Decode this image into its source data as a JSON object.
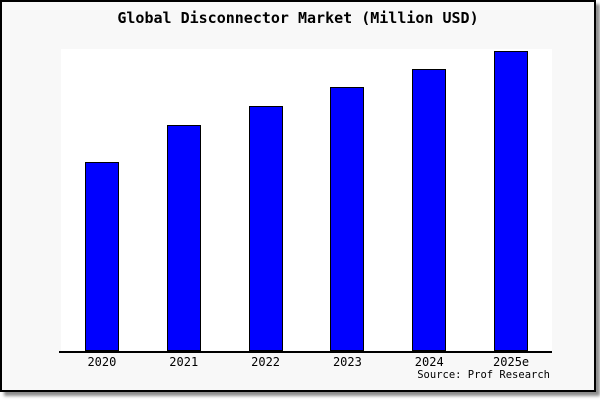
{
  "chart_data": {
    "type": "bar",
    "title": "Global Disconnector Market (Million USD)",
    "categories": [
      "2020",
      "2021",
      "2022",
      "2023",
      "2024",
      "2025e"
    ],
    "values": [
      62.6,
      74.8,
      81.1,
      87.3,
      93.4,
      99.5
    ],
    "units": "relative index (no y-axis scale shown; values estimated as percent of tallest-bar plot height)",
    "xlabel": "",
    "ylabel": "",
    "ylim": [
      0,
      100
    ],
    "grid": false,
    "legend": false,
    "y_axis_visible": false,
    "source_note": "Source: Prof Research",
    "colors": {
      "bar_fill": "#0000ff",
      "bar_edge": "#000000",
      "plot_background": "#ffffff",
      "frame_background": "#f8f8f8",
      "frame_border": "#000000",
      "axis_line": "#000000",
      "text": "#000000"
    }
  }
}
